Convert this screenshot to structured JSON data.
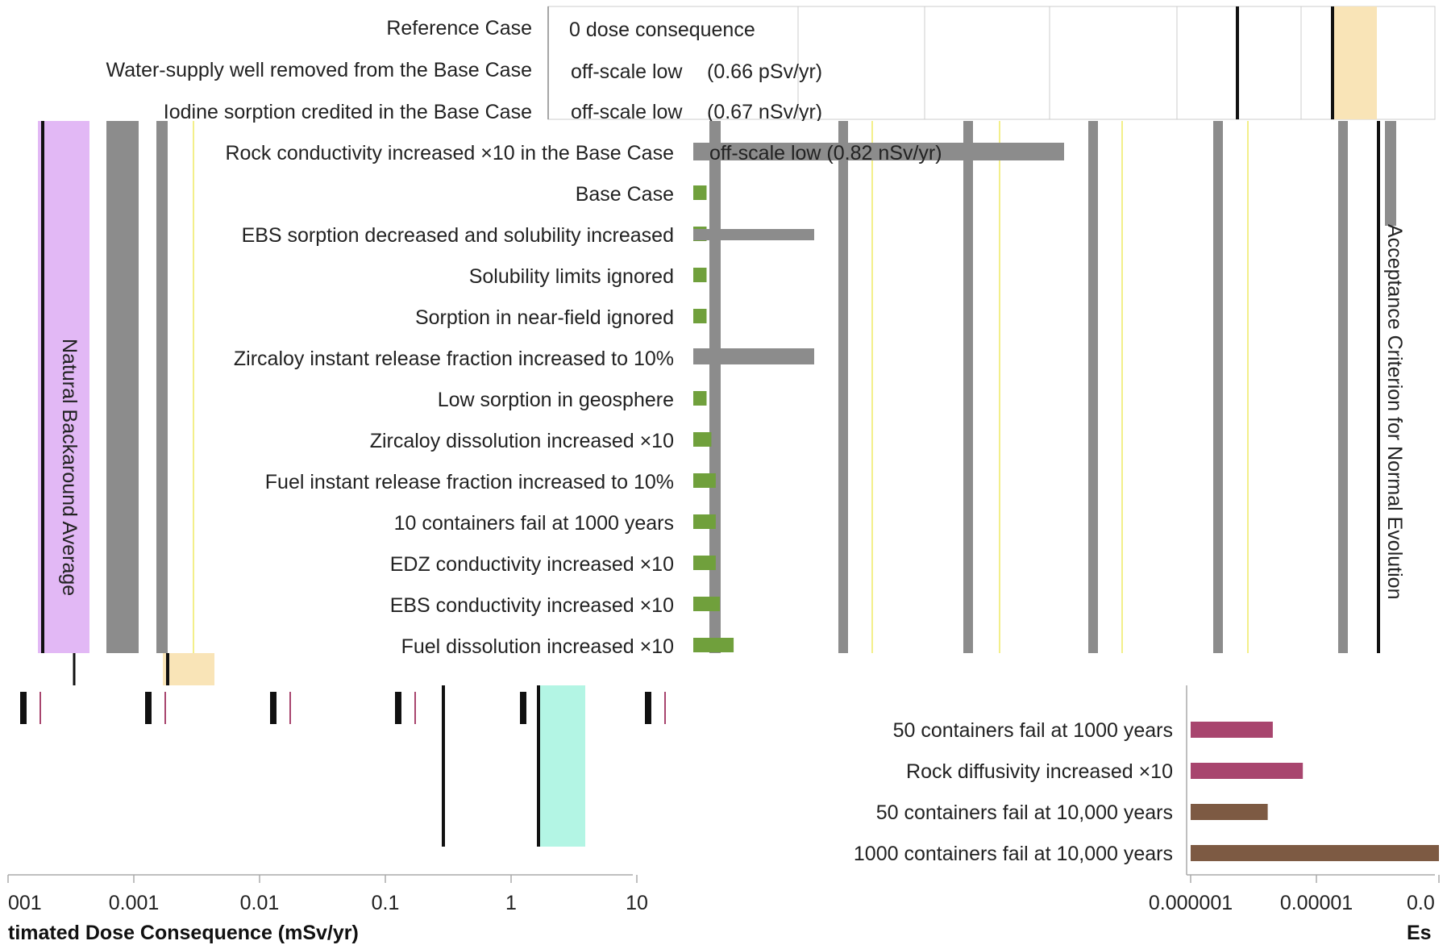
{
  "chart_data": [
    {
      "type": "bar",
      "orientation": "horizontal",
      "scale": "log",
      "categories": [
        "Reference Case",
        "Water-supply well removed from the Base Case",
        "Iodine sorption credited in the Base Case",
        "Rock conductivity increased ×10 in the Base Case",
        "Base Case",
        "EBS sorption decreased and solubility increased",
        "Solubility limits ignored",
        "Sorption in near-field ignored",
        "Zircaloy instant release fraction increased to 10%",
        "Low sorption in geosphere",
        "Zircaloy dissolution increased ×10",
        "Fuel instant release fraction increased to 10%",
        "10 containers fail at 1000 years",
        "EDZ conductivity increased ×10",
        "EBS conductivity increased ×10",
        "Fuel dissolution increased ×10"
      ],
      "annotations": [
        "0 dose consequence",
        "off-scale low",
        "(0.66 pSv/yr)",
        "off-scale low",
        "(0.67 nSv/yr)",
        "off-scale low (0.82 nSv/yr)"
      ],
      "values": [
        0,
        6.6e-10,
        6.7e-07,
        8.2e-07,
        1.1e-06,
        1.1e-06,
        1.1e-06,
        1.1e-06,
        1.1e-06,
        1.1e-06,
        1.2e-06,
        1.3e-06,
        1.3e-06,
        1.3e-06,
        1.4e-06,
        1.8e-06
      ],
      "reference_bands": [
        {
          "label": "Natural Backaround Average",
          "color": "#e2b8f5"
        },
        {
          "label": "Acceptance Criterion for Normal Evolution",
          "color": "#f9e4b7"
        }
      ],
      "bar_color": "#70a03c",
      "ghost_color": "#8c8c8c"
    },
    {
      "type": "bar",
      "orientation": "horizontal",
      "scale": "log",
      "categories": [
        "50 containers fail at 1000 years",
        "Rock diffusivity increased ×10",
        "50 containers fail at 10,000 years",
        "1000 containers fail at 10,000 years"
      ],
      "values": [
        4.5e-06,
        7.8e-06,
        4.1e-06,
        0.0001
      ],
      "colors": [
        "#a8456e",
        "#a8456e",
        "#7d5a43",
        "#7d5a43"
      ],
      "tick_labels": [
        "0.000001",
        "0.00001",
        "0.0"
      ],
      "xlabel": "Es"
    },
    {
      "type": "line",
      "scale": "log",
      "tick_labels": [
        "001",
        "0.001",
        "0.01",
        "0.1",
        "1",
        "10"
      ],
      "xlabel": "timated Dose Consequence (mSv/yr)",
      "reference_lines_mSv": [
        0.3,
        1.8
      ],
      "band_color": "#b3f5e4"
    }
  ]
}
